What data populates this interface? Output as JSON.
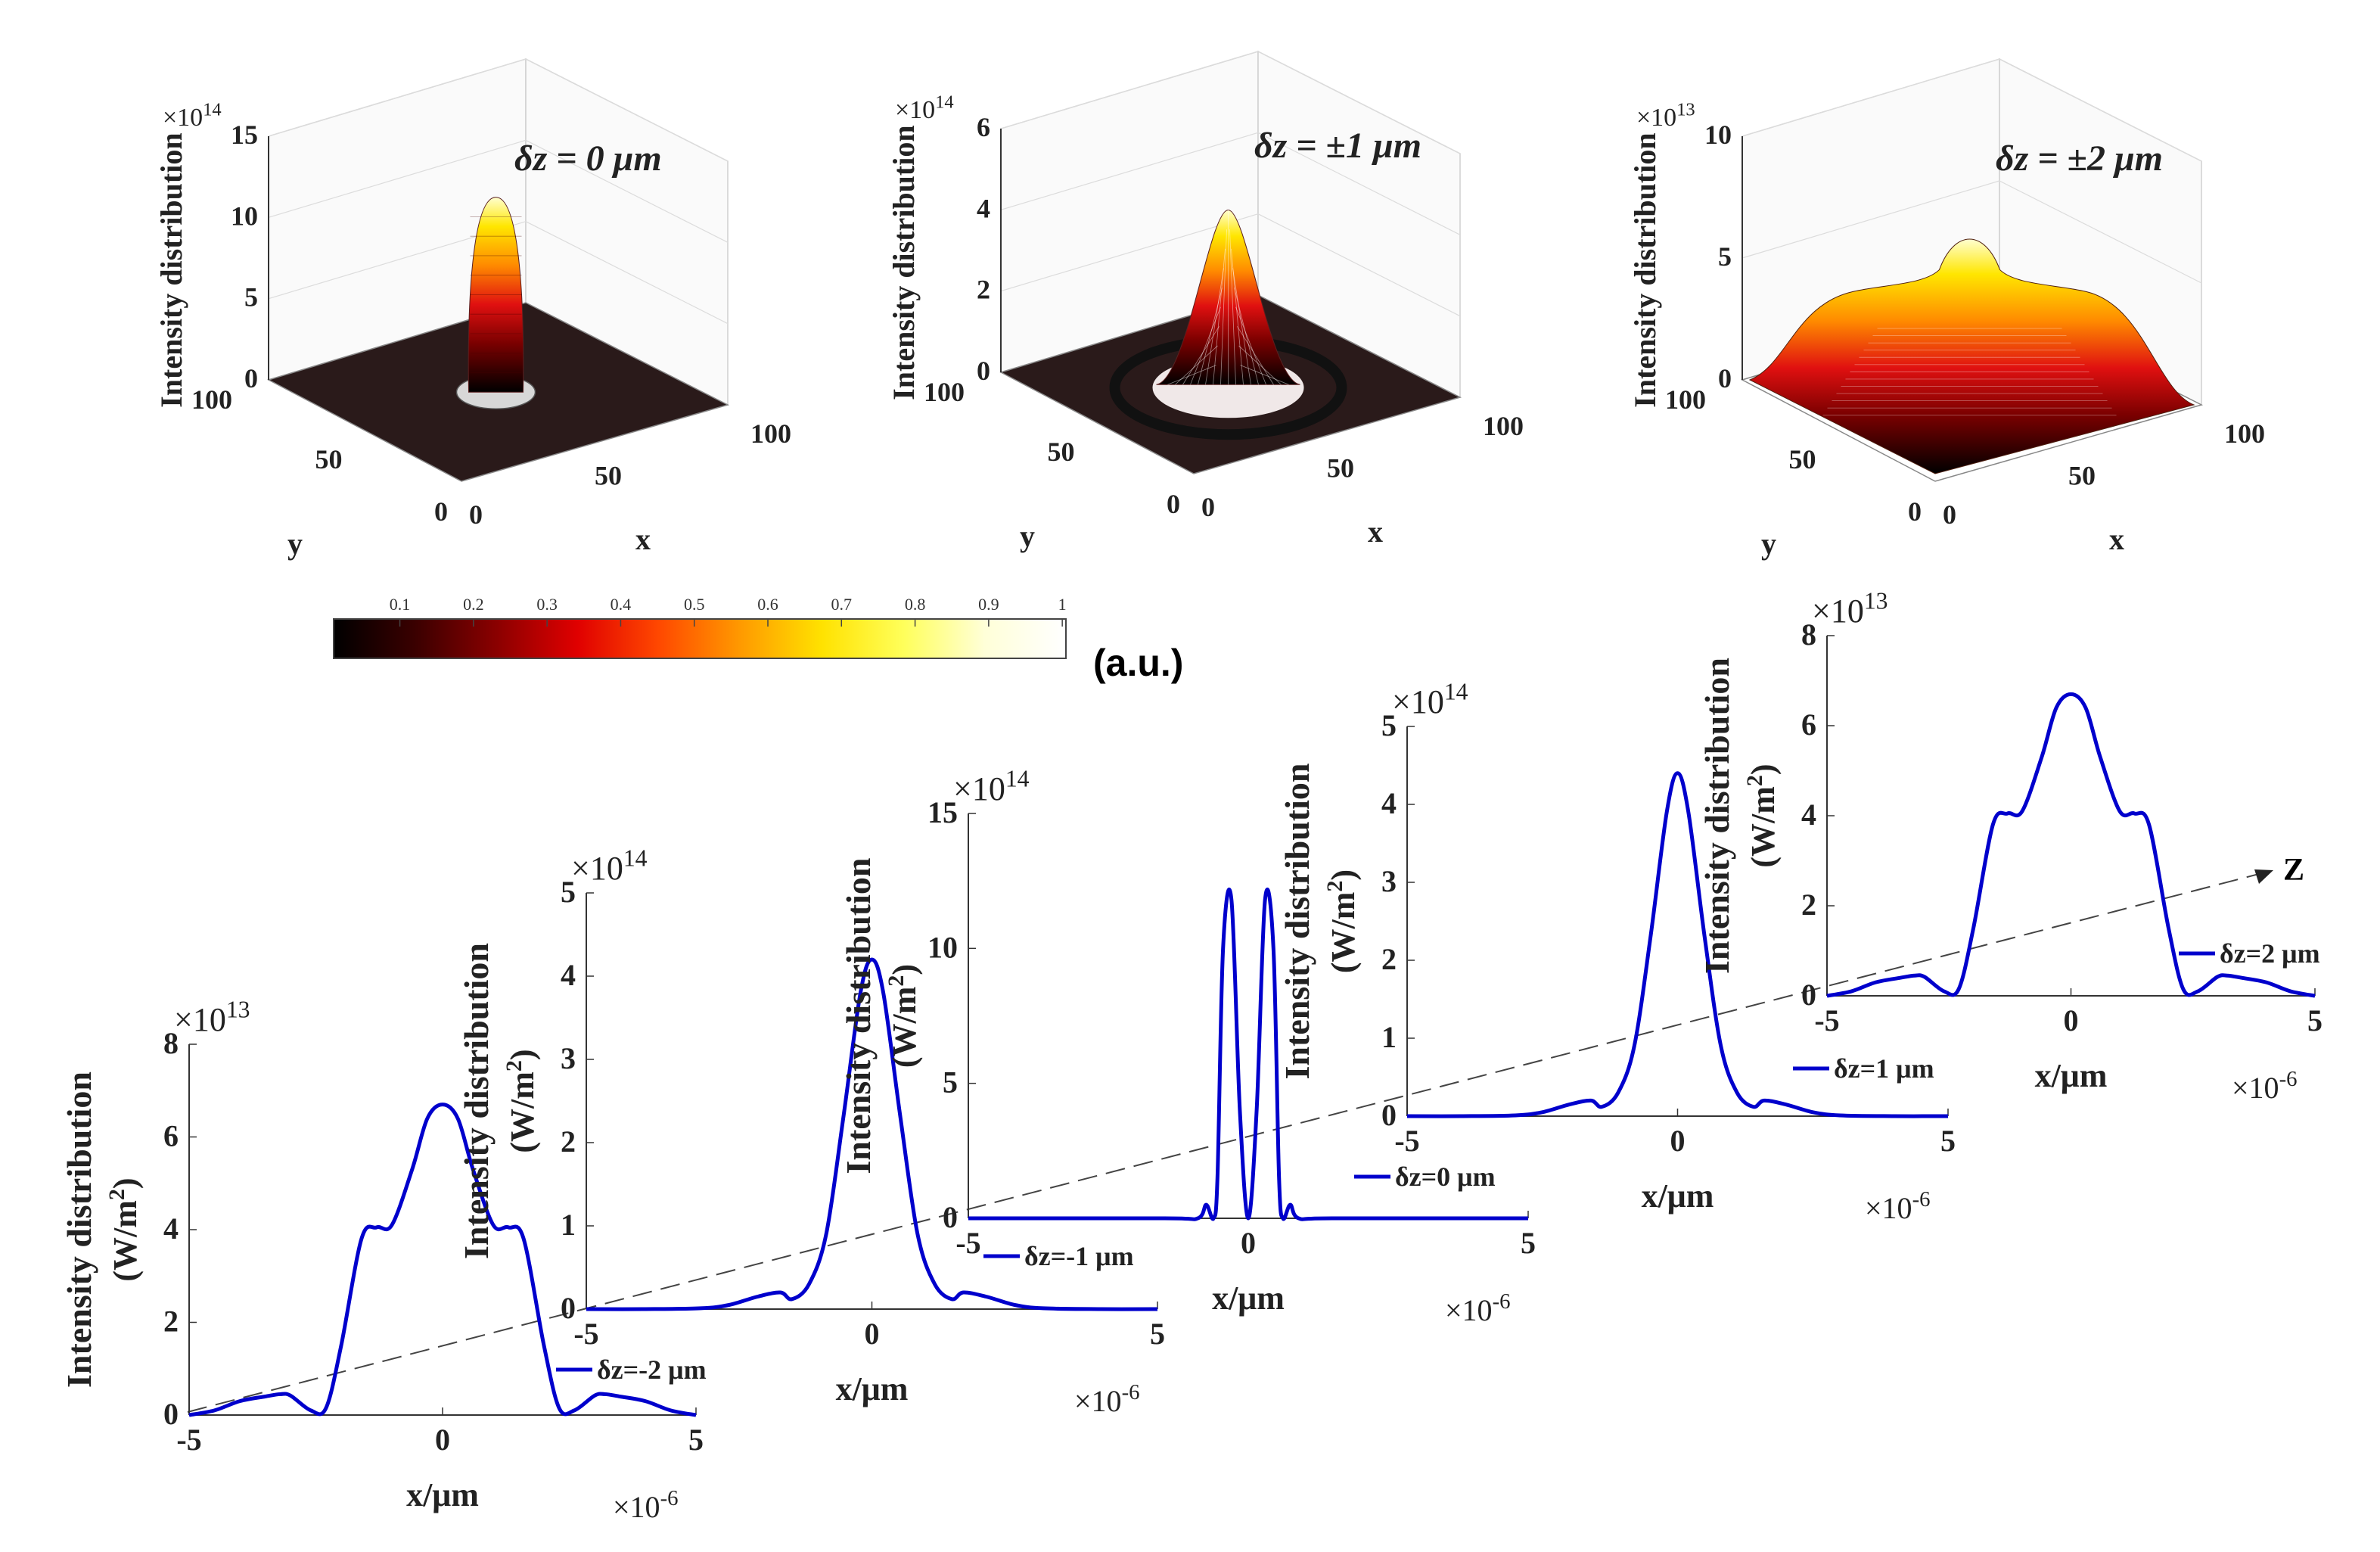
{
  "figure": {
    "colorbar": {
      "ticks": [
        "0.1",
        "0.2",
        "0.3",
        "0.4",
        "0.5",
        "0.6",
        "0.7",
        "0.8",
        "0.9",
        "1"
      ],
      "unit_label": "(a.u.)",
      "colors": [
        "#000000",
        "#3a0000",
        "#8a0000",
        "#e00000",
        "#ff4800",
        "#ff9a00",
        "#ffe200",
        "#ffff5a",
        "#ffffd8",
        "#ffffff"
      ]
    },
    "axis_label_color": "#222222",
    "line_color": "#0000cc",
    "z_axis_label": "Z"
  },
  "chart_data": [
    {
      "type": "surface3d",
      "title": "δz = 0 μm",
      "zlabel": "Intensity distribution",
      "xlabel": "x",
      "ylabel": "y",
      "exponent": "×10",
      "exponent_power": "14",
      "zticks": [
        "0",
        "5",
        "10",
        "15"
      ],
      "zlim": [
        0,
        15
      ],
      "xticks": [
        "0",
        "50",
        "100"
      ],
      "yticks": [
        "0",
        "50",
        "100"
      ],
      "peak": 12,
      "width": 4,
      "style": "narrow-doughnut"
    },
    {
      "type": "surface3d",
      "title": "δz = ±1 μm",
      "zlabel": "Intensity distribution",
      "xlabel": "x",
      "ylabel": "y",
      "exponent": "×10",
      "exponent_power": "14",
      "zticks": [
        "0",
        "2",
        "4",
        "6"
      ],
      "zlim": [
        0,
        6
      ],
      "xticks": [
        "0",
        "50",
        "100"
      ],
      "yticks": [
        "0",
        "50",
        "100"
      ],
      "peak": 4.3,
      "width": 10,
      "style": "peak-ring"
    },
    {
      "type": "surface3d",
      "title": "δz = ±2 μm",
      "zlabel": "Intensity distribution",
      "xlabel": "x",
      "ylabel": "y",
      "exponent": "×10",
      "exponent_power": "13",
      "zticks": [
        "0",
        "5",
        "10"
      ],
      "zlim": [
        0,
        10
      ],
      "xticks": [
        "0",
        "50",
        "100"
      ],
      "yticks": [
        "0",
        "50",
        "100"
      ],
      "peak": 6.7,
      "width": 30,
      "style": "broad-plateau"
    },
    {
      "type": "line",
      "legend": "δz=-2 μm",
      "ylabel": "Intensity distribution",
      "yunit": "(W/m",
      "yunit_power": "2",
      "xlabel": "x/μm",
      "y_exponent": "×10",
      "y_exponent_power": "13",
      "x_exponent": "×10",
      "x_exponent_power": "-6",
      "xlim": [
        -5,
        5
      ],
      "ylim": [
        0,
        8
      ],
      "xticks": [
        "-5",
        "0",
        "5"
      ],
      "yticks": [
        "0",
        "2",
        "4",
        "6",
        "8"
      ],
      "x": [
        -5,
        -4.5,
        -4,
        -3.5,
        -3.2,
        -3,
        -2.6,
        -2.3,
        -2,
        -1.6,
        -1.3,
        -1,
        -0.6,
        -0.3,
        0,
        0.3,
        0.6,
        1,
        1.3,
        1.6,
        2,
        2.3,
        2.6,
        3,
        3.2,
        3.5,
        4,
        4.5,
        5
      ],
      "y": [
        0,
        0.1,
        0.3,
        0.4,
        0.45,
        0.42,
        0.1,
        0.15,
        1.5,
        3.8,
        4.05,
        4.1,
        5.3,
        6.4,
        6.7,
        6.4,
        5.3,
        4.1,
        4.05,
        3.8,
        1.5,
        0.15,
        0.1,
        0.42,
        0.45,
        0.4,
        0.3,
        0.1,
        0
      ]
    },
    {
      "type": "line",
      "legend": "δz=-1 μm",
      "ylabel": "Intensity distribution",
      "yunit": "(W/m",
      "yunit_power": "2",
      "xlabel": "x/μm",
      "y_exponent": "×10",
      "y_exponent_power": "14",
      "x_exponent": "×10",
      "x_exponent_power": "-6",
      "xlim": [
        -5,
        5
      ],
      "ylim": [
        0,
        5
      ],
      "xticks": [
        "-5",
        "0",
        "5"
      ],
      "yticks": [
        "0",
        "1",
        "2",
        "3",
        "4",
        "5"
      ],
      "x": [
        -5,
        -4,
        -3,
        -2.5,
        -2,
        -1.6,
        -1.4,
        -1.1,
        -0.8,
        -0.5,
        -0.2,
        0,
        0.2,
        0.5,
        0.8,
        1.1,
        1.4,
        1.6,
        2,
        2.5,
        3,
        4,
        5
      ],
      "y": [
        0,
        0,
        0.01,
        0.05,
        0.15,
        0.2,
        0.12,
        0.3,
        0.9,
        2.3,
        3.8,
        4.2,
        3.8,
        2.3,
        0.9,
        0.3,
        0.12,
        0.2,
        0.15,
        0.05,
        0.01,
        0,
        0
      ]
    },
    {
      "type": "line",
      "legend": "δz=0 μm",
      "ylabel": "Intensity distribution",
      "yunit": "(W/m",
      "yunit_power": "2",
      "xlabel": "x/μm",
      "y_exponent": "×10",
      "y_exponent_power": "14",
      "x_exponent": "×10",
      "x_exponent_power": "-6",
      "xlim": [
        -5,
        5
      ],
      "ylim": [
        0,
        15
      ],
      "xticks": [
        "-5",
        "0",
        "5"
      ],
      "yticks": [
        "0",
        "5",
        "10",
        "15"
      ],
      "x": [
        -5,
        -1.5,
        -0.9,
        -0.75,
        -0.62,
        -0.55,
        -0.45,
        -0.3,
        -0.15,
        0,
        0.15,
        0.3,
        0.45,
        0.55,
        0.62,
        0.75,
        0.9,
        1.5,
        5
      ],
      "y": [
        0,
        0,
        0,
        0.5,
        0,
        1.5,
        10,
        11.8,
        4,
        0,
        4,
        11.8,
        10,
        1.5,
        0,
        0.5,
        0,
        0,
        0
      ]
    },
    {
      "type": "line",
      "legend": "δz=1 μm",
      "ylabel": "Intensity distribution",
      "yunit": "(W/m",
      "yunit_power": "2",
      "xlabel": "x/μm",
      "y_exponent": "×10",
      "y_exponent_power": "14",
      "x_exponent": "×10",
      "x_exponent_power": "-6",
      "xlim": [
        -5,
        5
      ],
      "ylim": [
        0,
        5
      ],
      "xticks": [
        "-5",
        "0",
        "5"
      ],
      "yticks": [
        "0",
        "1",
        "2",
        "3",
        "4",
        "5"
      ],
      "x": [
        -5,
        -4,
        -3,
        -2.5,
        -2,
        -1.6,
        -1.4,
        -1.1,
        -0.8,
        -0.5,
        -0.2,
        0,
        0.2,
        0.5,
        0.8,
        1.1,
        1.4,
        1.6,
        2,
        2.5,
        3,
        4,
        5
      ],
      "y": [
        0,
        0,
        0.01,
        0.05,
        0.15,
        0.2,
        0.12,
        0.3,
        0.9,
        2.3,
        3.9,
        4.4,
        3.9,
        2.3,
        0.9,
        0.3,
        0.12,
        0.2,
        0.15,
        0.05,
        0.01,
        0,
        0
      ]
    },
    {
      "type": "line",
      "legend": "δz=2 μm",
      "ylabel": "Intensity distribution",
      "yunit": "(W/m",
      "yunit_power": "2",
      "xlabel": "x/μm",
      "y_exponent": "×10",
      "y_exponent_power": "13",
      "x_exponent": "×10",
      "x_exponent_power": "-6",
      "xlim": [
        -5,
        5
      ],
      "ylim": [
        0,
        8
      ],
      "xticks": [
        "-5",
        "0",
        "5"
      ],
      "yticks": [
        "0",
        "2",
        "4",
        "6",
        "8"
      ],
      "x": [
        -5,
        -4.5,
        -4,
        -3.5,
        -3.2,
        -3,
        -2.6,
        -2.3,
        -2,
        -1.6,
        -1.3,
        -1,
        -0.6,
        -0.3,
        0,
        0.3,
        0.6,
        1,
        1.3,
        1.6,
        2,
        2.3,
        2.6,
        3,
        3.2,
        3.5,
        4,
        4.5,
        5
      ],
      "y": [
        0,
        0.1,
        0.3,
        0.4,
        0.45,
        0.42,
        0.1,
        0.15,
        1.5,
        3.8,
        4.05,
        4.1,
        5.3,
        6.4,
        6.7,
        6.4,
        5.3,
        4.1,
        4.05,
        3.8,
        1.5,
        0.15,
        0.1,
        0.42,
        0.45,
        0.4,
        0.3,
        0.1,
        0
      ]
    }
  ]
}
